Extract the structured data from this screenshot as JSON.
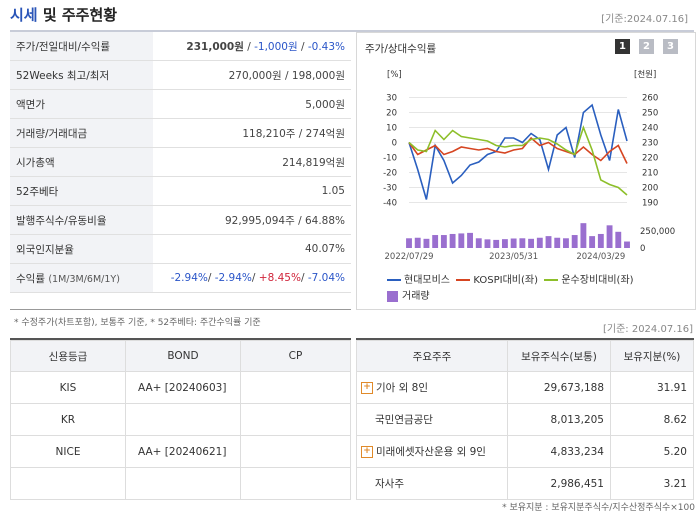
{
  "header": {
    "title_part1": "시세",
    "title_part2": "및 주주현황",
    "date": "[기준:2024.07.16]"
  },
  "price_rows": [
    {
      "label": "주가/전일대비/수익률",
      "value_main": "231,000원",
      "sep1": " / ",
      "value_change": "-1,000원",
      "sep2": " / ",
      "value_rate": "-0.43%"
    },
    {
      "label": "52Weeks 최고/최저",
      "value": "270,000원 / 198,000원"
    },
    {
      "label": "액면가",
      "value": "5,000원"
    },
    {
      "label": "거래량/거래대금",
      "value": "118,210주 / 274억원"
    },
    {
      "label": "시가총액",
      "value": "214,819억원"
    },
    {
      "label": "52주베타",
      "value": "1.05"
    },
    {
      "label": "발행주식수/유동비율",
      "value": "92,995,094주 / 64.88%"
    },
    {
      "label": "외국인지분율",
      "value": "40.07%"
    }
  ],
  "returns_row": {
    "label": "수익률",
    "label_sub": "(1M/3M/6M/1Y)",
    "r1": "-2.94%",
    "r2": "-2.94%",
    "r3": "+8.45%",
    "r4": "-7.04%",
    "sep": "/ "
  },
  "footnote_left": "* 수정주가(차트포함), 보통주 기준, * 52주베타: 주간수익률 기준",
  "chart_panel": {
    "title": "주가/상대수익률",
    "pages": [
      "1",
      "2",
      "3"
    ],
    "left_unit": "[%]",
    "right_unit": "[천원]",
    "vol_label": "250,000",
    "vol_zero": "0",
    "legend": {
      "s1": "현대모비스",
      "s2": "KOSPI대비(좌)",
      "s3": "운수장비대비(좌)",
      "s4": "거래량"
    }
  },
  "chart_data": {
    "type": "line",
    "x_ticks": [
      "2022/07/29",
      "2023/05/31",
      "2024/03/29"
    ],
    "left_axis": {
      "ticks": [
        30,
        20,
        10,
        0,
        -10,
        -20,
        -30,
        -40
      ],
      "range": [
        -45,
        35
      ]
    },
    "right_axis": {
      "ticks": [
        260,
        250,
        240,
        230,
        220,
        210,
        200,
        190
      ],
      "range": [
        185,
        265
      ]
    },
    "colors": {
      "price": "#2a5fbf",
      "kospi": "#d64521",
      "sector": "#8dbf2a",
      "volume": "#9a6fcf"
    },
    "series": [
      {
        "name": "현대모비스",
        "axis": "right",
        "values": [
          230,
          212,
          192,
          228,
          218,
          203,
          208,
          215,
          217,
          222,
          224,
          233,
          233,
          230,
          236,
          232,
          212,
          235,
          240,
          220,
          250,
          255,
          235,
          218,
          252,
          231
        ]
      },
      {
        "name": "KOSPI대비(좌)",
        "axis": "left",
        "values": [
          0,
          -8,
          -5,
          -2,
          -8,
          -6,
          -3,
          -4,
          -5,
          -4,
          -6,
          -7,
          -5,
          -4,
          3,
          -2,
          0,
          -4,
          -6,
          -8,
          -3,
          -8,
          -12,
          -6,
          -2,
          -14
        ]
      },
      {
        "name": "운수장비대비(좌)",
        "axis": "left",
        "values": [
          0,
          -5,
          -6,
          8,
          2,
          8,
          4,
          3,
          2,
          1,
          -2,
          -3,
          -2,
          -2,
          2,
          3,
          2,
          -1,
          -5,
          -8,
          10,
          -5,
          -25,
          -28,
          -30,
          -35
        ]
      }
    ],
    "volume": [
      90000,
      95000,
      85000,
      120000,
      120000,
      130000,
      135000,
      140000,
      90000,
      80000,
      75000,
      82000,
      88000,
      90000,
      85000,
      95000,
      110000,
      95000,
      90000,
      120000,
      230000,
      110000,
      130000,
      210000,
      150000,
      60000
    ]
  },
  "credit_table": {
    "headers": [
      "신용등급",
      "BOND",
      "CP"
    ],
    "rows": [
      {
        "agency": "KIS",
        "bond": "AA+  [20240603]",
        "cp": ""
      },
      {
        "agency": "KR",
        "bond": "",
        "cp": ""
      },
      {
        "agency": "NICE",
        "bond": "AA+  [20240621]",
        "cp": ""
      },
      {
        "agency": "",
        "bond": "",
        "cp": ""
      }
    ]
  },
  "shareholders": {
    "date": "[기준: 2024.07.16]",
    "headers": [
      "주요주주",
      "보유주식수(보통)",
      "보유지분(%)"
    ],
    "rows": [
      {
        "name": "기아 외 8인",
        "shares": "29,673,188",
        "pct": "31.91",
        "expand": true
      },
      {
        "name": "국민연금공단",
        "shares": "8,013,205",
        "pct": "8.62",
        "expand": false
      },
      {
        "name": "미래에셋자산운용 외 9인",
        "shares": "4,833,234",
        "pct": "5.20",
        "expand": true
      },
      {
        "name": "자사주",
        "shares": "2,986,451",
        "pct": "3.21",
        "expand": false
      }
    ],
    "footnote": "* 보유지분 : 보유지분주식수/지수산정주식수×100"
  }
}
